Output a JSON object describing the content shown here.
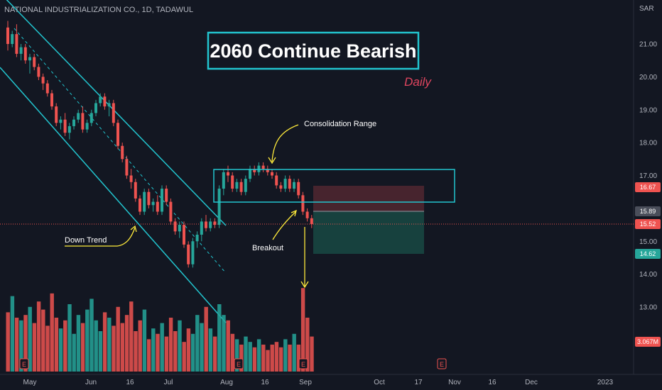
{
  "header": {
    "symbol": "NATIONAL INDUSTRIALIZATION CO., 1D, TADAWUL",
    "currency": "SAR"
  },
  "title": "2060 Continue Bearish",
  "subtitle": "Daily",
  "annotations": {
    "consolidation": "Consolidation Range",
    "down_trend": "Down Trend",
    "breakout": "Breakout"
  },
  "colors": {
    "background": "#131722",
    "up": "#26a69a",
    "down": "#ef5350",
    "channel": "#22c5cf",
    "arrow": "#ffeb3b",
    "title_box": "#22c5cf",
    "subtitle": "#e0455f",
    "target_zone": "#1b5e52",
    "stop_zone": "#5a2a33"
  },
  "price_tags": [
    {
      "label": "16.67",
      "value": 16.67,
      "color": "#ef5350"
    },
    {
      "label": "15.89",
      "value": 15.89,
      "color": "#4a4e5a"
    },
    {
      "label": "15.52",
      "value": 15.52,
      "color": "#ef5350"
    },
    {
      "label": "14.62",
      "value": 14.62,
      "color": "#26a69a"
    },
    {
      "label": "3.067M",
      "value": 3.067,
      "color": "#ef5350"
    }
  ],
  "event_markers": [
    "E",
    "E",
    "E",
    "E"
  ],
  "chart_data": {
    "type": "candlestick",
    "y_ticks": [
      "21.00",
      "20.00",
      "19.00",
      "18.00",
      "17.00",
      "15.00",
      "14.00",
      "13.00"
    ],
    "ylim": [
      12.0,
      22.0
    ],
    "x_ticks": [
      "May",
      "Jun",
      "16",
      "Jul",
      "Aug",
      "16",
      "Sep",
      "Oct",
      "17",
      "Nov",
      "16",
      "Dec",
      "2023"
    ],
    "candles": [
      [
        21.5,
        21.7,
        20.8,
        21.0
      ],
      [
        21.0,
        21.4,
        20.9,
        21.3
      ],
      [
        21.3,
        21.6,
        20.6,
        20.7
      ],
      [
        20.7,
        21.0,
        20.5,
        20.9
      ],
      [
        20.9,
        21.0,
        20.4,
        20.5
      ],
      [
        20.5,
        20.7,
        20.1,
        20.6
      ],
      [
        20.6,
        20.7,
        20.2,
        20.3
      ],
      [
        20.3,
        20.4,
        19.9,
        20.0
      ],
      [
        20.0,
        20.1,
        19.6,
        19.8
      ],
      [
        19.8,
        19.9,
        19.4,
        19.5
      ],
      [
        19.5,
        19.6,
        19.0,
        19.1
      ],
      [
        19.1,
        19.2,
        18.5,
        18.6
      ],
      [
        18.6,
        18.8,
        18.4,
        18.7
      ],
      [
        18.7,
        18.9,
        18.2,
        18.3
      ],
      [
        18.3,
        18.6,
        18.1,
        18.5
      ],
      [
        18.5,
        18.8,
        18.4,
        18.7
      ],
      [
        18.7,
        19.0,
        18.6,
        18.9
      ],
      [
        18.9,
        19.1,
        18.3,
        18.4
      ],
      [
        18.4,
        18.7,
        18.3,
        18.6
      ],
      [
        18.6,
        19.0,
        18.5,
        18.9
      ],
      [
        18.9,
        19.3,
        18.8,
        19.2
      ],
      [
        19.2,
        19.5,
        19.1,
        19.4
      ],
      [
        19.4,
        19.5,
        19.0,
        19.1
      ],
      [
        19.1,
        19.3,
        18.8,
        19.2
      ],
      [
        19.2,
        19.3,
        18.5,
        18.6
      ],
      [
        18.6,
        18.7,
        17.8,
        17.9
      ],
      [
        17.9,
        18.0,
        17.4,
        17.5
      ],
      [
        17.5,
        17.6,
        16.9,
        17.0
      ],
      [
        17.0,
        17.2,
        16.6,
        16.8
      ],
      [
        16.8,
        16.9,
        16.2,
        16.3
      ],
      [
        16.3,
        16.4,
        15.8,
        15.9
      ],
      [
        15.9,
        16.6,
        15.8,
        16.5
      ],
      [
        16.5,
        16.6,
        16.0,
        16.1
      ],
      [
        16.1,
        16.3,
        15.9,
        16.2
      ],
      [
        16.2,
        16.4,
        15.8,
        15.9
      ],
      [
        15.9,
        16.7,
        15.8,
        16.6
      ],
      [
        16.6,
        16.7,
        16.1,
        16.2
      ],
      [
        16.2,
        16.3,
        15.5,
        15.6
      ],
      [
        15.6,
        15.7,
        15.2,
        15.3
      ],
      [
        15.3,
        15.6,
        15.1,
        15.5
      ],
      [
        15.5,
        15.6,
        14.8,
        14.9
      ],
      [
        14.9,
        15.0,
        14.2,
        14.3
      ],
      [
        14.3,
        15.1,
        14.2,
        15.0
      ],
      [
        15.0,
        15.3,
        14.8,
        15.2
      ],
      [
        15.2,
        15.7,
        15.0,
        15.6
      ],
      [
        15.6,
        15.8,
        15.3,
        15.4
      ],
      [
        15.4,
        15.7,
        15.3,
        15.6
      ],
      [
        15.6,
        15.7,
        15.4,
        15.5
      ],
      [
        15.5,
        16.7,
        15.4,
        16.6
      ],
      [
        16.6,
        17.2,
        16.4,
        17.1
      ],
      [
        17.1,
        17.3,
        16.8,
        17.0
      ],
      [
        17.0,
        17.1,
        16.5,
        16.6
      ],
      [
        16.6,
        16.9,
        16.5,
        16.8
      ],
      [
        16.8,
        16.9,
        16.4,
        16.5
      ],
      [
        16.5,
        17.0,
        16.4,
        16.9
      ],
      [
        16.9,
        17.3,
        16.8,
        17.2
      ],
      [
        17.2,
        17.3,
        17.0,
        17.1
      ],
      [
        17.1,
        17.4,
        17.0,
        17.3
      ],
      [
        17.3,
        17.4,
        17.1,
        17.2
      ],
      [
        17.2,
        17.3,
        17.0,
        17.1
      ],
      [
        17.1,
        17.2,
        16.9,
        17.0
      ],
      [
        17.0,
        17.1,
        16.6,
        16.7
      ],
      [
        16.7,
        16.8,
        16.5,
        16.6
      ],
      [
        16.6,
        17.0,
        16.5,
        16.9
      ],
      [
        16.9,
        17.0,
        16.5,
        16.6
      ],
      [
        16.6,
        16.9,
        16.5,
        16.8
      ],
      [
        16.8,
        16.9,
        16.3,
        16.4
      ],
      [
        16.4,
        16.5,
        15.8,
        15.9
      ],
      [
        15.9,
        16.0,
        15.6,
        15.7
      ],
      [
        15.7,
        15.8,
        15.4,
        15.52
      ]
    ],
    "volume": [
      2.2,
      2.8,
      2.0,
      1.9,
      2.1,
      2.4,
      1.8,
      2.6,
      2.3,
      1.7,
      2.9,
      2.0,
      1.6,
      1.9,
      2.5,
      1.4,
      2.1,
      1.8,
      2.3,
      2.7,
      1.9,
      1.5,
      2.2,
      2.0,
      1.7,
      2.4,
      1.8,
      2.1,
      2.6,
      1.5,
      1.9,
      2.3,
      1.2,
      1.6,
      1.4,
      1.8,
      1.3,
      2.0,
      1.5,
      1.9,
      1.1,
      1.6,
      1.4,
      2.1,
      1.8,
      2.4,
      1.6,
      1.3,
      2.5,
      2.1,
      1.9,
      1.4,
      1.2,
      1.0,
      1.3,
      1.1,
      0.9,
      1.2,
      1.0,
      0.8,
      1.0,
      1.1,
      0.9,
      1.2,
      1.0,
      1.4,
      1.0,
      3.1,
      2.0,
      1.3
    ]
  }
}
